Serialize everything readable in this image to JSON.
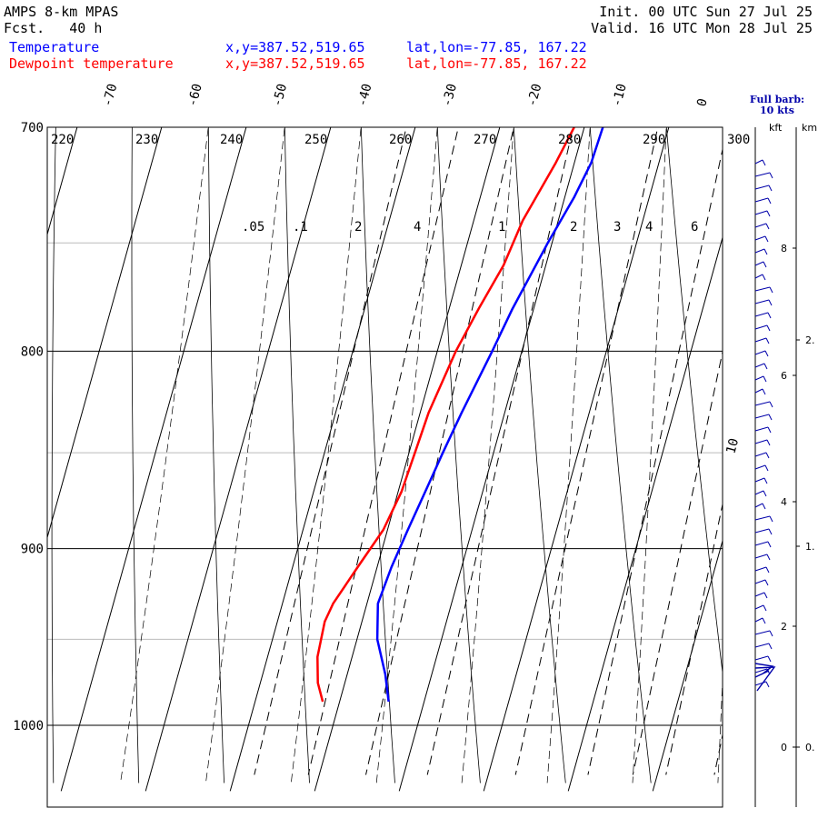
{
  "header": {
    "model": "AMPS 8-km MPAS",
    "fcst": "Fcst.   40 h",
    "init": "Init. 00 UTC Sun 27 Jul 25",
    "valid": "Valid. 16 UTC Mon 28 Jul 25",
    "temp_label": "Temperature",
    "dew_label": "Dewpoint temperature",
    "temp_xy": "x,y=387.52,519.65",
    "temp_latlon": "lat,lon=-77.85, 167.22",
    "dew_xy": "x,y=387.52,519.65",
    "dew_latlon": "lat,lon=-77.85, 167.22"
  },
  "barb_panel": {
    "title1": "Full barb:",
    "title2": "10 kts",
    "kft_label": "kft",
    "km_label": "km",
    "kft_ticks": [
      "8",
      "6",
      "4",
      "2",
      "0"
    ],
    "km_ticks": [
      "2.",
      "1.",
      "0."
    ]
  },
  "colors": {
    "temperature": "#0000ff",
    "dewpoint": "#ff0000",
    "grid": "#000000",
    "wind_barb": "#0000aa"
  },
  "chart_data": {
    "type": "line",
    "subtype": "skew-T log-P diagram",
    "title": "AMPS 8-km MPAS",
    "y_axis": {
      "label": "",
      "scale": "log",
      "range_hpa": [
        1040,
        700
      ],
      "ticks": [
        "700",
        "800",
        "900",
        "1000"
      ]
    },
    "isotherm_labels_c": [
      "-70",
      "-60",
      "-50",
      "-40",
      "-30",
      "-20",
      "-10",
      "0",
      "10"
    ],
    "dry_adiabat_labels_k": [
      "220",
      "230",
      "240",
      "250",
      "260",
      "270",
      "280",
      "290",
      "300"
    ],
    "mixing_ratio_labels": [
      ".05",
      ".1",
      "2",
      "4",
      "1",
      "2",
      "3",
      "4",
      "6"
    ],
    "series": [
      {
        "name": "Temperature",
        "color": "#0000ff",
        "points_p_t": [
          [
            986,
            -34.2
          ],
          [
            970,
            -35.5
          ],
          [
            950,
            -37.6
          ],
          [
            930,
            -38.7
          ],
          [
            910,
            -38.3
          ],
          [
            890,
            -37.6
          ],
          [
            870,
            -36.8
          ],
          [
            850,
            -36.0
          ],
          [
            830,
            -35.1
          ],
          [
            800,
            -33.5
          ],
          [
            780,
            -32.5
          ],
          [
            750,
            -30.5
          ],
          [
            730,
            -28.9
          ],
          [
            715,
            -28.0
          ],
          [
            700,
            -27.8
          ]
        ]
      },
      {
        "name": "Dewpoint temperature",
        "color": "#ff0000",
        "points_p_t": [
          [
            986,
            -42.0
          ],
          [
            975,
            -43.2
          ],
          [
            960,
            -44.1
          ],
          [
            940,
            -44.4
          ],
          [
            930,
            -44.0
          ],
          [
            910,
            -42.3
          ],
          [
            890,
            -40.5
          ],
          [
            870,
            -39.6
          ],
          [
            850,
            -39.3
          ],
          [
            830,
            -39.0
          ],
          [
            800,
            -37.8
          ],
          [
            780,
            -36.5
          ],
          [
            760,
            -35.0
          ],
          [
            740,
            -34.2
          ],
          [
            715,
            -32.2
          ],
          [
            700,
            -31.2
          ]
        ]
      }
    ],
    "wind_profile": {
      "units": "kts",
      "full_barb_kts": 10
    }
  }
}
